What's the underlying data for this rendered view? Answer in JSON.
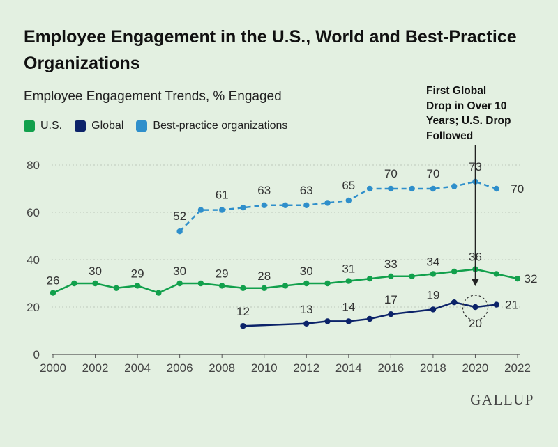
{
  "title": "Employee Engagement in the U.S., World and Best-Practice Organizations",
  "subtitle": "Employee Engagement Trends, % Engaged",
  "annotation": {
    "line1": "First Global",
    "line2": "Drop in Over 10",
    "line3": "Years; U.S. Drop",
    "line4": "Followed"
  },
  "brand": "GALLUP",
  "colors": {
    "us": "#12a04c",
    "global": "#0c2369",
    "best": "#2f8fcb",
    "grid": "#bcc8bb",
    "background": "#e3f0e1"
  },
  "chart_data": {
    "type": "line",
    "title": "Employee Engagement Trends, % Engaged",
    "xlabel": "",
    "ylabel": "",
    "xlim": [
      2000,
      2022
    ],
    "ylim": [
      0,
      80
    ],
    "x_ticks": [
      "2000",
      "2002",
      "2004",
      "2006",
      "2008",
      "2010",
      "2012",
      "2014",
      "2016",
      "2018",
      "2020",
      "2022"
    ],
    "y_ticks": [
      "0",
      "20",
      "40",
      "60",
      "80"
    ],
    "legend_position": "top-left",
    "grid": true,
    "series": [
      {
        "name": "U.S.",
        "key": "us",
        "dashed": false,
        "points": [
          {
            "x": 2000,
            "y": 26,
            "label": "26"
          },
          {
            "x": 2001,
            "y": 30
          },
          {
            "x": 2002,
            "y": 30,
            "label": "30"
          },
          {
            "x": 2003,
            "y": 28
          },
          {
            "x": 2004,
            "y": 29,
            "label": "29"
          },
          {
            "x": 2005,
            "y": 26
          },
          {
            "x": 2006,
            "y": 30,
            "label": "30"
          },
          {
            "x": 2007,
            "y": 30
          },
          {
            "x": 2008,
            "y": 29,
            "label": "29"
          },
          {
            "x": 2009,
            "y": 28
          },
          {
            "x": 2010,
            "y": 28,
            "label": "28"
          },
          {
            "x": 2011,
            "y": 29
          },
          {
            "x": 2012,
            "y": 30,
            "label": "30"
          },
          {
            "x": 2013,
            "y": 30
          },
          {
            "x": 2014,
            "y": 31,
            "label": "31"
          },
          {
            "x": 2015,
            "y": 32
          },
          {
            "x": 2016,
            "y": 33,
            "label": "33"
          },
          {
            "x": 2017,
            "y": 33
          },
          {
            "x": 2018,
            "y": 34,
            "label": "34"
          },
          {
            "x": 2019,
            "y": 35
          },
          {
            "x": 2020,
            "y": 36,
            "label": "36"
          },
          {
            "x": 2021,
            "y": 34
          },
          {
            "x": 2022,
            "y": 32,
            "label": "32"
          }
        ]
      },
      {
        "name": "Global",
        "key": "global",
        "dashed": false,
        "points": [
          {
            "x": 2009,
            "y": 12,
            "label": "12"
          },
          {
            "x": 2012,
            "y": 13,
            "label": "13"
          },
          {
            "x": 2013,
            "y": 14
          },
          {
            "x": 2014,
            "y": 14,
            "label": "14"
          },
          {
            "x": 2015,
            "y": 15
          },
          {
            "x": 2016,
            "y": 17,
            "label": "17"
          },
          {
            "x": 2018,
            "y": 19,
            "label": "19"
          },
          {
            "x": 2019,
            "y": 22
          },
          {
            "x": 2020,
            "y": 20,
            "label": "20"
          },
          {
            "x": 2021,
            "y": 21,
            "label": "21"
          }
        ]
      },
      {
        "name": "Best-practice organizations",
        "key": "best",
        "dashed": true,
        "points": [
          {
            "x": 2006,
            "y": 52,
            "label": "52"
          },
          {
            "x": 2007,
            "y": 61
          },
          {
            "x": 2008,
            "y": 61,
            "label": "61"
          },
          {
            "x": 2009,
            "y": 62
          },
          {
            "x": 2010,
            "y": 63,
            "label": "63"
          },
          {
            "x": 2011,
            "y": 63
          },
          {
            "x": 2012,
            "y": 63,
            "label": "63"
          },
          {
            "x": 2013,
            "y": 64
          },
          {
            "x": 2014,
            "y": 65,
            "label": "65"
          },
          {
            "x": 2015,
            "y": 70
          },
          {
            "x": 2016,
            "y": 70,
            "label": "70"
          },
          {
            "x": 2017,
            "y": 70
          },
          {
            "x": 2018,
            "y": 70,
            "label": "70"
          },
          {
            "x": 2019,
            "y": 71
          },
          {
            "x": 2020,
            "y": 73,
            "label": "73"
          },
          {
            "x": 2021,
            "y": 70,
            "label": "70"
          }
        ]
      }
    ]
  }
}
